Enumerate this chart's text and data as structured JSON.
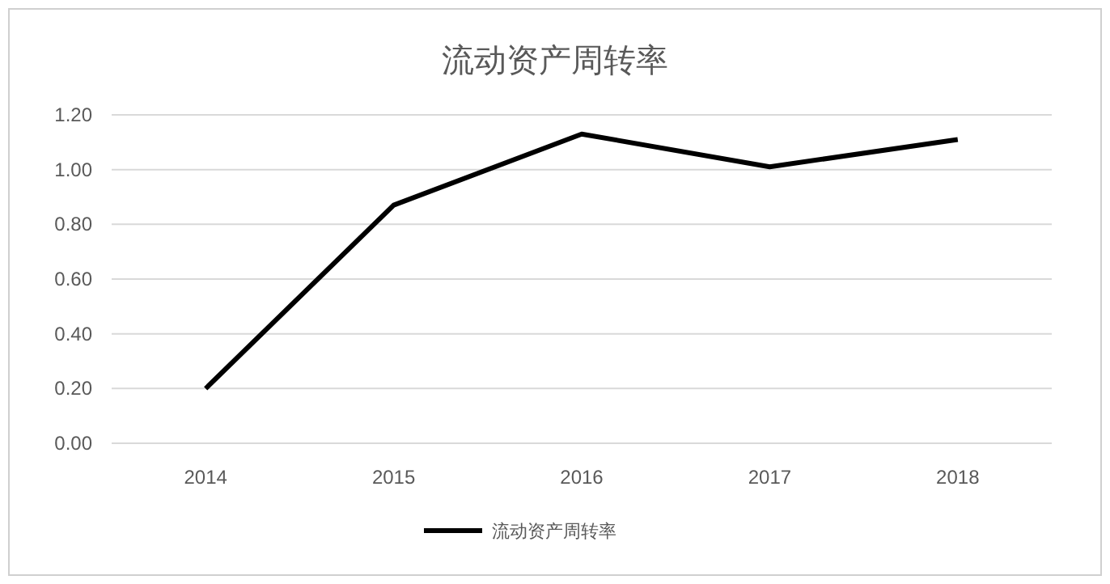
{
  "chart_data": {
    "type": "line",
    "title": "流动资产周转率",
    "categories": [
      "2014",
      "2015",
      "2016",
      "2017",
      "2018"
    ],
    "series": [
      {
        "name": "流动资产周转率",
        "color": "#000000",
        "values": [
          0.2,
          0.87,
          1.13,
          1.01,
          1.11
        ]
      }
    ],
    "ylim": [
      0,
      1.2
    ],
    "yticks": [
      {
        "value": 0,
        "label": "0.00"
      },
      {
        "value": 0.2,
        "label": "0.20"
      },
      {
        "value": 0.4,
        "label": "0.40"
      },
      {
        "value": 0.6,
        "label": "0.60"
      },
      {
        "value": 0.8,
        "label": "0.80"
      },
      {
        "value": 1.0,
        "label": "1.00"
      },
      {
        "value": 1.2,
        "label": "1.20"
      }
    ],
    "grid": "y",
    "legend": "bottom"
  }
}
